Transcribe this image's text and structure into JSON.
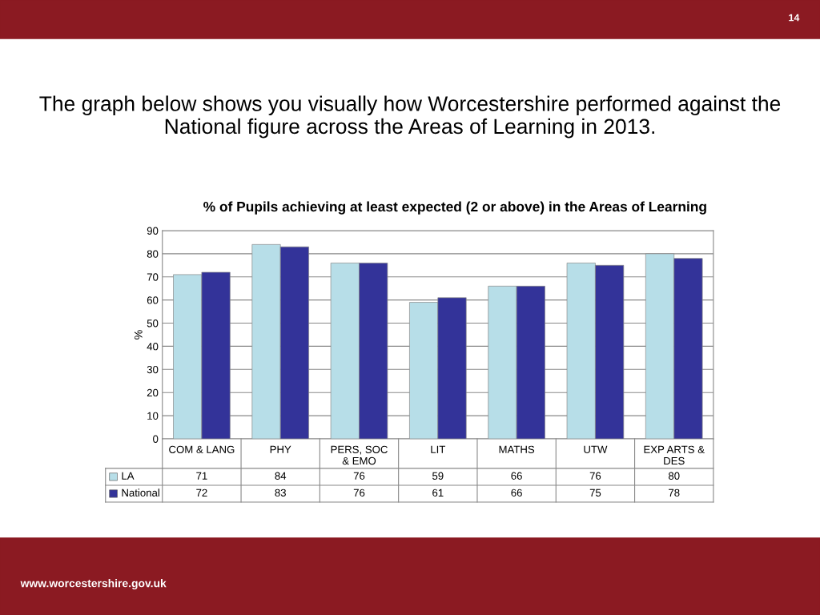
{
  "chart_data": {
    "type": "bar",
    "title": "The graph below shows you visually how Worcestershire performed against the National figure across the Areas of Learning in 2013.",
    "subtitle": "% of Pupils achieving at least expected (2 or above) in the Areas of Learning",
    "ylabel": "%",
    "categories": [
      "COM & LANG",
      "PHY",
      "PERS, SOC\n& EMO",
      "LIT",
      "MATHS",
      "UTW",
      "EXP ARTS &\nDES"
    ],
    "series": [
      {
        "name": "LA",
        "color": "#b7dee8",
        "values": [
          71,
          84,
          76,
          59,
          66,
          76,
          80
        ]
      },
      {
        "name": "National",
        "color": "#333399",
        "values": [
          72,
          83,
          76,
          61,
          66,
          75,
          78
        ]
      }
    ],
    "ylim": [
      0,
      90
    ],
    "yticks": [
      0,
      10,
      20,
      30,
      40,
      50,
      60,
      70,
      80,
      90
    ],
    "grid": "y",
    "data_labels": true,
    "legend": "left",
    "annotations": [
      "14",
      "www.worcestershire.gov.uk"
    ]
  }
}
